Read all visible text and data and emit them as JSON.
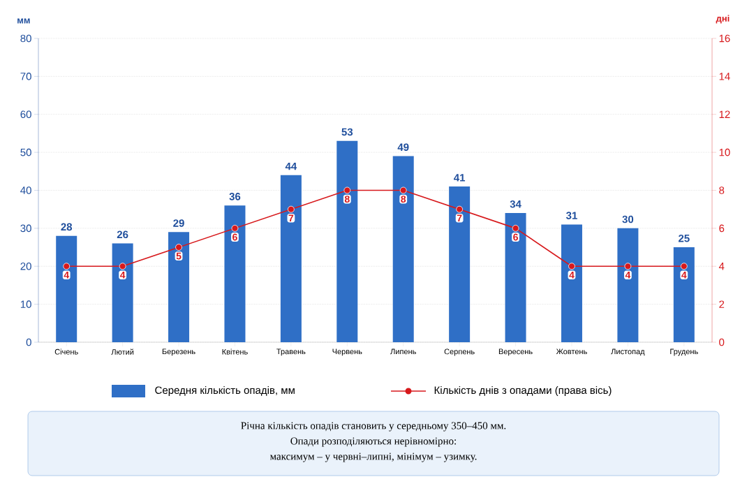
{
  "chart_data": {
    "type": "bar",
    "categories": [
      "Січень",
      "Лютий",
      "Березень",
      "Квітень",
      "Травень",
      "Червень",
      "Липень",
      "Серпень",
      "Вересень",
      "Жовтень",
      "Листопад",
      "Грудень"
    ],
    "series": [
      {
        "name": "Середня кількість опадів, мм",
        "color": "#2f6fc6",
        "values": [
          28,
          26,
          29,
          36,
          44,
          53,
          49,
          41,
          34,
          31,
          30,
          25
        ]
      },
      {
        "name": "Кількість днів з опадами (права вісь)",
        "type": "line",
        "axis": "y2",
        "color": "#d7191c",
        "marker": "circle",
        "values": [
          4,
          4,
          5,
          6,
          7,
          8,
          8,
          7,
          6,
          4,
          4,
          4
        ]
      }
    ],
    "ylabel": "мм",
    "y2label": "дні",
    "ylim": [
      0,
      80
    ],
    "yticks": [
      0,
      10,
      20,
      30,
      40,
      50,
      60,
      70,
      80
    ],
    "y2lim": [
      0,
      16
    ],
    "y2ticks": [
      0,
      2,
      4,
      6,
      8,
      10,
      12,
      14,
      16
    ],
    "grid": "y",
    "legend": "bottom",
    "data_labels": true,
    "annotations": [
      "Річна кількість опадів становить у середньому 350–450 мм.",
      "Опади розподіляються нерівномірно:",
      "максимум – у червні–липні, мінімум – узимку."
    ]
  }
}
